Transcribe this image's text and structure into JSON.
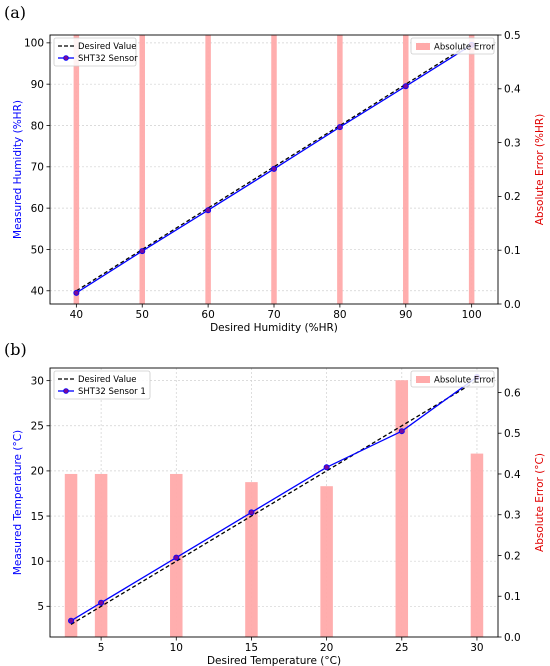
{
  "chart_data": [
    {
      "panel_label": "(a)",
      "type": "line+bar",
      "grid": true,
      "x": [
        40,
        50,
        60,
        70,
        80,
        90,
        100
      ],
      "xlabel": "Desired Humidity (%HR)",
      "xlim": [
        36,
        104
      ],
      "xticks": [
        40,
        50,
        60,
        70,
        80,
        90,
        100
      ],
      "ylabel_left": "Measured Humidity (%HR)",
      "ylim_left": [
        36.8,
        101.9
      ],
      "yticks_left": [
        40,
        50,
        60,
        70,
        80,
        90,
        100
      ],
      "ylabel_right": "Absolute Error (%HR)",
      "ylim_right": [
        0,
        0.5
      ],
      "yticks_right": [
        0.0,
        0.1,
        0.2,
        0.3,
        0.4,
        0.5
      ],
      "legend_left_position": "top-left",
      "legend_right_position": "top-right",
      "series": [
        {
          "name": "Desired Value",
          "axis": "left",
          "kind": "line",
          "style": "dashed",
          "color": "#000000",
          "values": [
            40,
            50,
            60,
            70,
            80,
            90,
            100
          ]
        },
        {
          "name": "SHT32 Sensor",
          "axis": "left",
          "kind": "line",
          "style": "solid",
          "marker": "circle",
          "color": "#0000ff",
          "marker_color": "#7a0a9a",
          "values": [
            39.5,
            49.6,
            59.5,
            69.5,
            79.6,
            89.5,
            99.5
          ]
        },
        {
          "name": "Absolute Error",
          "axis": "right",
          "kind": "bar",
          "color": "#ffaaaa",
          "values": [
            0.5,
            0.5,
            0.5,
            0.5,
            0.5,
            0.5,
            0.5
          ]
        }
      ]
    },
    {
      "panel_label": "(b)",
      "type": "line+bar",
      "grid": true,
      "x": [
        3,
        5,
        10,
        15,
        20,
        25,
        30
      ],
      "xlabel": "Desired Temperature (°C)",
      "xlim": [
        1.6,
        31.4
      ],
      "xticks": [
        5,
        10,
        15,
        20,
        25,
        30
      ],
      "ylabel_left": "Measured Temperature (°C)",
      "ylim_left": [
        1.6,
        31.4
      ],
      "yticks_left": [
        5,
        10,
        15,
        20,
        25,
        30
      ],
      "ylabel_right": "Absolute Error (°C)",
      "ylim_right": [
        0,
        0.66
      ],
      "yticks_right": [
        0.0,
        0.1,
        0.2,
        0.3,
        0.4,
        0.5,
        0.6
      ],
      "legend_left_position": "top-left",
      "legend_right_position": "top-right",
      "series": [
        {
          "name": "Desired Value",
          "axis": "left",
          "kind": "line",
          "style": "dashed",
          "color": "#000000",
          "values": [
            3,
            5,
            10,
            15,
            20,
            25,
            30
          ]
        },
        {
          "name": "SHT32 Sensor 1",
          "axis": "left",
          "kind": "line",
          "style": "solid",
          "marker": "circle",
          "color": "#0000ff",
          "marker_color": "#7a0a9a",
          "values": [
            3.4,
            5.4,
            10.4,
            15.4,
            20.4,
            24.4,
            30.4
          ]
        },
        {
          "name": "Absolute Error",
          "axis": "right",
          "kind": "bar",
          "color": "#ffaaaa",
          "values": [
            0.4,
            0.4,
            0.4,
            0.38,
            0.37,
            0.63,
            0.45
          ]
        }
      ]
    }
  ]
}
